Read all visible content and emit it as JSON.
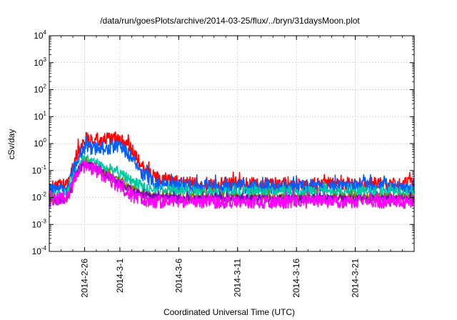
{
  "chart_data": {
    "type": "line",
    "title": "/data/run/goesPlots/archive/2014-03-25/flux/../bryn/31daysMoon.plot",
    "xlabel": "Coordinated Universal Time (UTC)",
    "ylabel": "cSv/day",
    "yscale": "log",
    "xlim": [
      "2014-02-23",
      "2014-03-26"
    ],
    "ylim": [
      0.0001,
      10000
    ],
    "grid": true,
    "legend": "none",
    "x_ticks": [
      "2014-2-26",
      "2014-3-1",
      "2014-3-6",
      "2014-3-11",
      "2014-3-16",
      "2014-3-21"
    ],
    "y_ticks": [
      {
        "base": "10",
        "exp": "-4"
      },
      {
        "base": "10",
        "exp": "-3"
      },
      {
        "base": "10",
        "exp": "-2"
      },
      {
        "base": "10",
        "exp": "-1"
      },
      {
        "base": "10",
        "exp": "0"
      },
      {
        "base": "10",
        "exp": "1"
      },
      {
        "base": "10",
        "exp": "2"
      },
      {
        "base": "10",
        "exp": "3"
      },
      {
        "base": "10",
        "exp": "4"
      }
    ],
    "series": [
      {
        "name": "red",
        "color": "#ff0000",
        "noise": 0.55,
        "x": [
          0,
          1.5,
          2.3,
          2.8,
          3.2,
          3.5,
          5.0,
          6.0,
          7.0,
          8.0,
          9.0,
          11.0,
          13.0,
          33.0
        ],
        "y": [
          0.022,
          0.028,
          0.35,
          1.1,
          1.4,
          1.3,
          1.4,
          1.6,
          0.55,
          0.12,
          0.05,
          0.035,
          0.03,
          0.03
        ]
      },
      {
        "name": "blue",
        "color": "#0060ff",
        "noise": 0.5,
        "x": [
          0,
          1.5,
          2.3,
          2.8,
          3.2,
          3.5,
          5.0,
          6.0,
          7.0,
          8.0,
          9.0,
          11.0,
          13.0,
          33.0
        ],
        "y": [
          0.018,
          0.022,
          0.2,
          0.55,
          0.75,
          0.65,
          0.7,
          0.85,
          0.3,
          0.07,
          0.035,
          0.027,
          0.025,
          0.025
        ]
      },
      {
        "name": "teal",
        "color": "#00c8a0",
        "noise": 0.4,
        "x": [
          0,
          1.5,
          2.3,
          2.8,
          3.2,
          4.0,
          5.0,
          6.0,
          7.0,
          8.0,
          9.0,
          11.0,
          33.0
        ],
        "y": [
          0.012,
          0.014,
          0.1,
          0.22,
          0.25,
          0.18,
          0.12,
          0.08,
          0.04,
          0.025,
          0.018,
          0.016,
          0.016
        ]
      },
      {
        "name": "olive",
        "color": "#808000",
        "noise": 0.3,
        "x": [
          0,
          1.5,
          2.3,
          2.8,
          3.2,
          4.0,
          5.0,
          6.0,
          7.0,
          8.0,
          9.0,
          11.0,
          33.0
        ],
        "y": [
          0.008,
          0.009,
          0.07,
          0.16,
          0.18,
          0.12,
          0.07,
          0.04,
          0.02,
          0.013,
          0.011,
          0.01,
          0.01
        ]
      },
      {
        "name": "purple",
        "color": "#8000c0",
        "noise": 0.3,
        "x": [
          0,
          1.5,
          2.3,
          2.8,
          3.2,
          4.0,
          5.0,
          6.0,
          7.0,
          8.0,
          9.0,
          11.0,
          33.0
        ],
        "y": [
          0.007,
          0.008,
          0.06,
          0.15,
          0.17,
          0.11,
          0.06,
          0.035,
          0.018,
          0.012,
          0.01,
          0.009,
          0.009
        ]
      },
      {
        "name": "magenta",
        "color": "#ff00ff",
        "noise": 0.5,
        "x": [
          0,
          1.5,
          2.3,
          2.8,
          3.2,
          4.0,
          5.0,
          6.0,
          7.0,
          8.0,
          9.0,
          11.0,
          33.0
        ],
        "y": [
          0.008,
          0.009,
          0.06,
          0.13,
          0.15,
          0.1,
          0.05,
          0.025,
          0.012,
          0.008,
          0.007,
          0.007,
          0.007
        ]
      }
    ]
  }
}
